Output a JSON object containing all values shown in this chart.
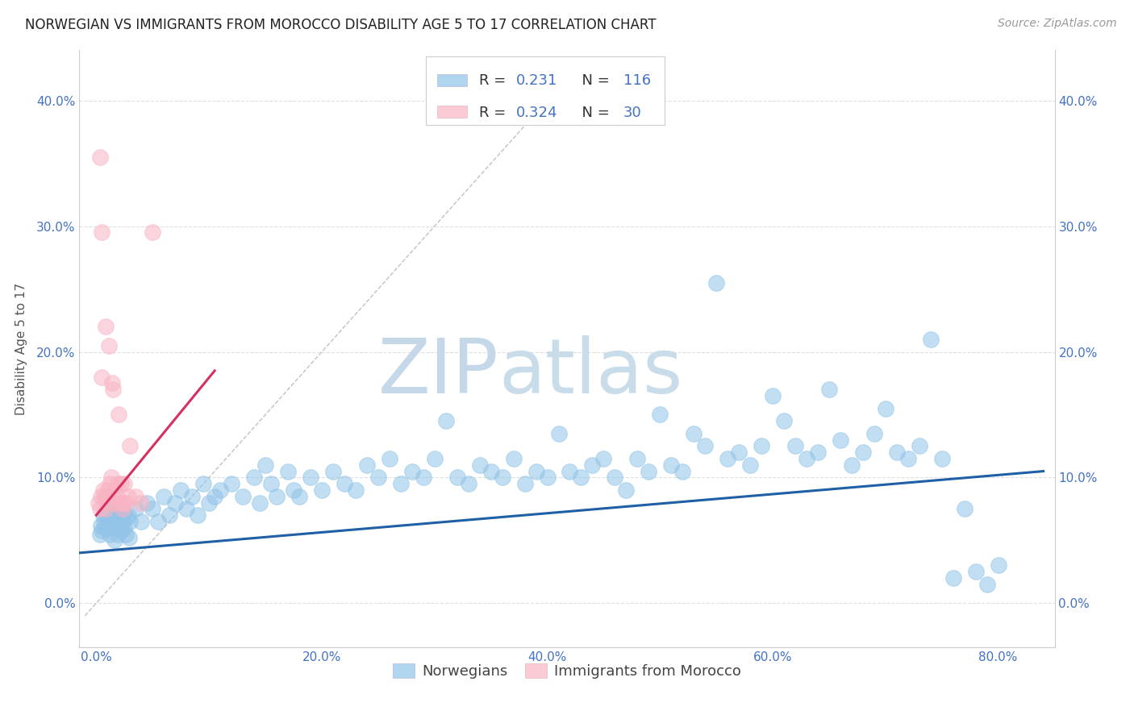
{
  "title": "NORWEGIAN VS IMMIGRANTS FROM MOROCCO DISABILITY AGE 5 TO 17 CORRELATION CHART",
  "source": "Source: ZipAtlas.com",
  "xlabel_ticks": [
    "0.0%",
    "20.0%",
    "40.0%",
    "60.0%",
    "80.0%"
  ],
  "xlabel_tick_vals": [
    0.0,
    20.0,
    40.0,
    60.0,
    80.0
  ],
  "ylabel": "Disability Age 5 to 17",
  "ylabel_ticks": [
    "0.0%",
    "10.0%",
    "20.0%",
    "30.0%",
    "40.0%"
  ],
  "ylabel_tick_vals": [
    0.0,
    10.0,
    20.0,
    30.0,
    40.0
  ],
  "xlim": [
    -1.5,
    85.0
  ],
  "ylim": [
    -3.5,
    44.0
  ],
  "blue_R": 0.231,
  "blue_N": 116,
  "pink_R": 0.324,
  "pink_N": 30,
  "blue_color": "#91c4e8",
  "pink_color": "#f9b4c4",
  "blue_line_color": "#1f5fa6",
  "pink_line_color": "#d63060",
  "grid_color": "#e0e0e0",
  "watermark_zip_color": "#c0d4e8",
  "watermark_atlas_color": "#c8dce8",
  "legend_label_blue": "Norwegians",
  "legend_label_pink": "Immigrants from Morocco",
  "title_fontsize": 12,
  "source_fontsize": 10,
  "axis_label_fontsize": 11,
  "tick_fontsize": 11,
  "legend_fontsize": 13,
  "blue_x": [
    0.3,
    0.4,
    0.5,
    0.6,
    0.7,
    0.8,
    0.9,
    1.0,
    1.1,
    1.2,
    1.3,
    1.4,
    1.5,
    1.6,
    1.7,
    1.8,
    1.9,
    2.0,
    2.1,
    2.2,
    2.3,
    2.4,
    2.5,
    2.6,
    2.7,
    2.8,
    2.9,
    3.0,
    3.5,
    4.0,
    4.5,
    5.0,
    5.5,
    6.0,
    6.5,
    7.0,
    7.5,
    8.0,
    8.5,
    9.0,
    9.5,
    10.0,
    10.5,
    11.0,
    12.0,
    13.0,
    14.0,
    14.5,
    15.0,
    15.5,
    16.0,
    17.0,
    17.5,
    18.0,
    19.0,
    20.0,
    21.0,
    22.0,
    23.0,
    24.0,
    25.0,
    26.0,
    27.0,
    28.0,
    29.0,
    30.0,
    31.0,
    32.0,
    33.0,
    34.0,
    35.0,
    36.0,
    37.0,
    38.0,
    39.0,
    40.0,
    41.0,
    42.0,
    43.0,
    44.0,
    45.0,
    46.0,
    47.0,
    48.0,
    49.0,
    50.0,
    51.0,
    52.0,
    53.0,
    54.0,
    55.0,
    56.0,
    57.0,
    58.0,
    59.0,
    60.0,
    61.0,
    62.0,
    63.0,
    64.0,
    65.0,
    66.0,
    67.0,
    68.0,
    69.0,
    70.0,
    71.0,
    72.0,
    73.0,
    74.0,
    75.0,
    76.0,
    77.0,
    78.0,
    79.0,
    80.0
  ],
  "blue_y": [
    5.5,
    6.2,
    5.8,
    7.0,
    6.5,
    5.9,
    6.8,
    7.2,
    6.9,
    5.5,
    6.0,
    7.5,
    6.5,
    5.0,
    6.2,
    7.8,
    5.5,
    6.8,
    7.0,
    5.8,
    6.5,
    7.2,
    6.0,
    5.5,
    6.8,
    7.0,
    5.2,
    6.5,
    7.5,
    6.5,
    8.0,
    7.5,
    6.5,
    8.5,
    7.0,
    8.0,
    9.0,
    7.5,
    8.5,
    7.0,
    9.5,
    8.0,
    8.5,
    9.0,
    9.5,
    8.5,
    10.0,
    8.0,
    11.0,
    9.5,
    8.5,
    10.5,
    9.0,
    8.5,
    10.0,
    9.0,
    10.5,
    9.5,
    9.0,
    11.0,
    10.0,
    11.5,
    9.5,
    10.5,
    10.0,
    11.5,
    14.5,
    10.0,
    9.5,
    11.0,
    10.5,
    10.0,
    11.5,
    9.5,
    10.5,
    10.0,
    13.5,
    10.5,
    10.0,
    11.0,
    11.5,
    10.0,
    9.0,
    11.5,
    10.5,
    15.0,
    11.0,
    10.5,
    13.5,
    12.5,
    25.5,
    11.5,
    12.0,
    11.0,
    12.5,
    16.5,
    14.5,
    12.5,
    11.5,
    12.0,
    17.0,
    13.0,
    11.0,
    12.0,
    13.5,
    15.5,
    12.0,
    11.5,
    12.5,
    21.0,
    11.5,
    2.0,
    7.5,
    2.5,
    1.5,
    3.0
  ],
  "pink_x": [
    0.2,
    0.3,
    0.4,
    0.5,
    0.6,
    0.7,
    0.8,
    0.9,
    1.0,
    1.1,
    1.2,
    1.3,
    1.4,
    1.5,
    1.6,
    1.7,
    1.8,
    1.9,
    2.0,
    2.1,
    2.2,
    2.3,
    2.4,
    2.5,
    2.6,
    2.8,
    3.0,
    3.5,
    4.0,
    5.0
  ],
  "pink_y": [
    8.0,
    7.5,
    8.5,
    18.0,
    9.0,
    8.5,
    7.5,
    8.5,
    9.0,
    8.0,
    9.5,
    10.0,
    8.5,
    17.0,
    8.0,
    9.0,
    8.5,
    9.5,
    15.0,
    8.0,
    9.5,
    7.5,
    8.0,
    9.5,
    8.0,
    8.5,
    12.5,
    8.5,
    8.0,
    29.5
  ],
  "pink_outliers_x": [
    0.3,
    0.5,
    0.8,
    1.1,
    1.4
  ],
  "pink_outliers_y": [
    35.5,
    29.5,
    22.0,
    20.5,
    17.5
  ],
  "blue_trend_x0": -1.5,
  "blue_trend_x1": 84.0,
  "blue_trend_y0": 4.0,
  "blue_trend_y1": 10.5,
  "pink_trend_x0": 0.0,
  "pink_trend_x1": 10.5,
  "pink_trend_y0": 7.0,
  "pink_trend_y1": 18.5
}
